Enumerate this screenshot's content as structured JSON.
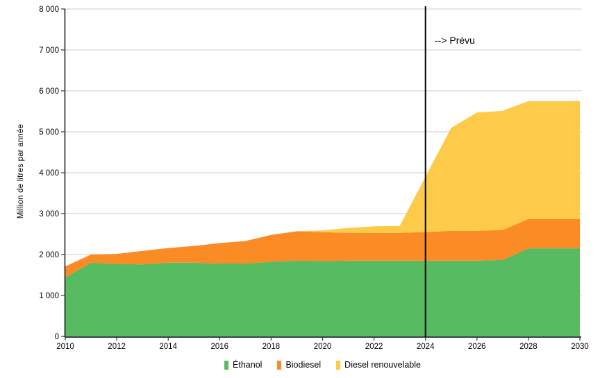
{
  "chart_data": {
    "type": "area",
    "stacked": true,
    "title": "",
    "xlabel": "",
    "ylabel": "Million de litres par année",
    "x": [
      2010,
      2011,
      2012,
      2013,
      2014,
      2015,
      2016,
      2017,
      2018,
      2019,
      2020,
      2021,
      2022,
      2023,
      2024,
      2025,
      2026,
      2027,
      2028,
      2029,
      2030
    ],
    "series": [
      {
        "name": "Éthanol",
        "color": "#57bb61",
        "values": [
          1440,
          1800,
          1770,
          1760,
          1800,
          1800,
          1780,
          1780,
          1820,
          1850,
          1840,
          1850,
          1850,
          1850,
          1850,
          1850,
          1850,
          1870,
          2150,
          2150,
          2150
        ]
      },
      {
        "name": "Biodiesel",
        "color": "#fb8b24",
        "values": [
          270,
          200,
          245,
          330,
          360,
          410,
          500,
          550,
          660,
          720,
          705,
          680,
          680,
          680,
          700,
          730,
          730,
          730,
          720,
          720,
          720
        ]
      },
      {
        "name": "Diesel renouvelable",
        "color": "#fdca49",
        "values": [
          0,
          0,
          0,
          0,
          0,
          0,
          0,
          0,
          0,
          0,
          45,
          120,
          160,
          170,
          1350,
          2520,
          2890,
          2910,
          2880,
          2880,
          2880
        ]
      }
    ],
    "xlim": [
      2010,
      2030
    ],
    "ylim": [
      0,
      8000
    ],
    "xticks": {
      "values": [
        2010,
        2012,
        2014,
        2016,
        2018,
        2020,
        2022,
        2024,
        2026,
        2028,
        2030
      ],
      "labels": [
        "2010",
        "2012",
        "2014",
        "2016",
        "2018",
        "2020",
        "2022",
        "2024",
        "2026",
        "2028",
        "2030"
      ]
    },
    "yticks": {
      "values": [
        0,
        1000,
        2000,
        3000,
        4000,
        5000,
        6000,
        7000,
        8000
      ],
      "labels": [
        "0",
        "1 000",
        "2 000",
        "3 000",
        "4 000",
        "5 000",
        "6 000",
        "7 000",
        "8 000"
      ]
    },
    "grid": "horizontal",
    "legend_position": "bottom",
    "forecast_line": {
      "x": 2024
    },
    "annotation": {
      "text": "--> Prévu"
    }
  },
  "style": {
    "gridline_color": "#cccccc",
    "axis_color": "#000000",
    "tick_color": "#333333",
    "forecast_line_color": "#000000"
  }
}
